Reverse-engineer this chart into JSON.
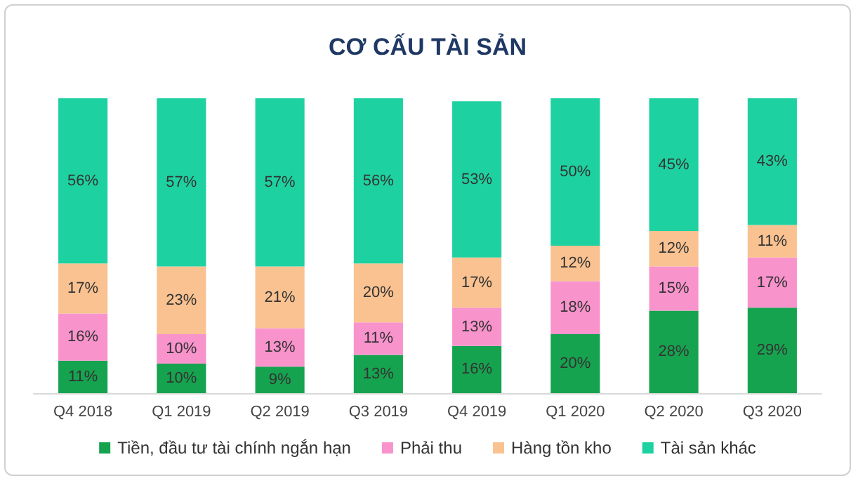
{
  "chart_data": {
    "type": "bar",
    "title": "CƠ CẤU TÀI SẢN",
    "stacked": true,
    "tick_labels": "x",
    "grid": false,
    "legend": "bottom",
    "categories": [
      "Q4 2018",
      "Q1 2019",
      "Q2 2019",
      "Q3 2019",
      "Q4 2019",
      "Q1 2020",
      "Q2 2020",
      "Q3 2020"
    ],
    "series": [
      {
        "name": "Tiền, đầu tư tài chính ngắn hạn",
        "color": "#16a34f",
        "values": [
          11,
          10,
          9,
          13,
          16,
          20,
          28,
          29
        ],
        "value_labels": [
          "11%",
          "10%",
          "9%",
          "13%",
          "16%",
          "20%",
          "28%",
          "29%"
        ]
      },
      {
        "name": "Phải thu",
        "color": "#f893cc",
        "values": [
          16,
          10,
          13,
          11,
          13,
          18,
          15,
          17
        ],
        "value_labels": [
          "16%",
          "10%",
          "13%",
          "11%",
          "13%",
          "18%",
          "15%",
          "17%"
        ]
      },
      {
        "name": "Hàng tồn kho",
        "color": "#f9c290",
        "values": [
          17,
          23,
          21,
          20,
          17,
          12,
          12,
          11
        ],
        "value_labels": [
          "17%",
          "23%",
          "21%",
          "20%",
          "17%",
          "12%",
          "12%",
          "11%"
        ]
      },
      {
        "name": "Tài sản khác",
        "color": "#1ed1a0",
        "values": [
          56,
          57,
          57,
          56,
          53,
          50,
          45,
          43
        ],
        "value_labels": [
          "56%",
          "57%",
          "57%",
          "56%",
          "53%",
          "50%",
          "45%",
          "43%"
        ]
      }
    ]
  }
}
